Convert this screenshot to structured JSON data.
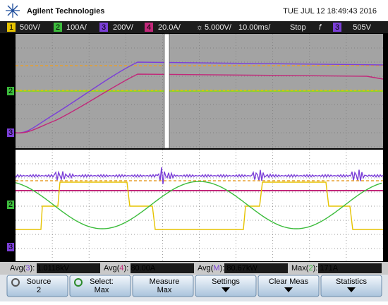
{
  "header": {
    "brand": "Agilent Technologies",
    "datetime": "TUE JUL 12 18:49:43 2016"
  },
  "channel_bar": {
    "channels": [
      {
        "num": "1",
        "scale": "500V/"
      },
      {
        "num": "2",
        "scale": "100A/"
      },
      {
        "num": "3",
        "scale": "200V/"
      },
      {
        "num": "4",
        "scale": "20.0A/"
      }
    ],
    "math_scale": "5.000V/",
    "timebase": "10.00ms/",
    "run_state": "Stop",
    "trigger_slope": "f",
    "trigger_source": "3",
    "trigger_level": "505V"
  },
  "markers": {
    "upper": [
      "2",
      "3"
    ],
    "lower": [
      "2",
      "3"
    ]
  },
  "measurements": [
    {
      "prefix": "Avg(",
      "ch": "3",
      "suffix": "): 1.0118kV"
    },
    {
      "prefix": "Avg(",
      "ch": "4",
      "suffix": "): 80.00A"
    },
    {
      "prefix": "Avg(",
      "ch": "M",
      "suffix": "): 80.67kW"
    },
    {
      "prefix": "Max(",
      "ch": "2",
      "suffix": "): 171A"
    }
  ],
  "softkeys": [
    {
      "label": "Source",
      "value": "2"
    },
    {
      "label": "Select:",
      "value": "Max"
    },
    {
      "label": "Measure",
      "value": "Max"
    },
    {
      "label": "Settings"
    },
    {
      "label": "Clear Meas"
    },
    {
      "label": "Statistics"
    }
  ]
}
